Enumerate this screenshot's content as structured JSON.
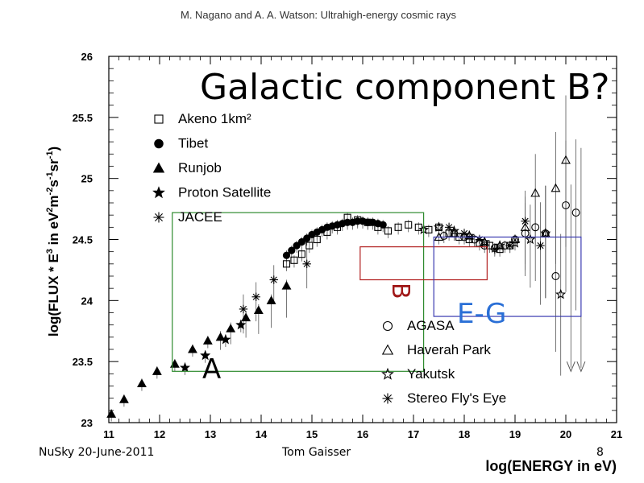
{
  "header": "M. Nagano and A. A. Watson: Ultrahigh-energy cosmic rays",
  "slide_title": "Galactic component B?",
  "footer": {
    "left": "NuSky 20-June-2011",
    "center": "Tom Gaisser",
    "page": "8"
  },
  "colors": {
    "box_A": "#2e8b2e",
    "box_B": "#b22222",
    "box_EG": "#3a3ab0",
    "label_A": "#000000",
    "label_B": "#a01818",
    "label_EG": "#2a6fd6"
  },
  "regions": [
    {
      "label": "A",
      "x_range": [
        12.25,
        17.2
      ],
      "y_range": [
        23.42,
        24.72
      ]
    },
    {
      "label": "B",
      "x_range": [
        15.95,
        18.45
      ],
      "y_range": [
        24.17,
        24.44
      ]
    },
    {
      "label": "E-G",
      "x_range": [
        17.4,
        20.3
      ],
      "y_range": [
        23.87,
        24.52
      ]
    }
  ],
  "chart_data": {
    "type": "scatter",
    "xlabel": "log(ENERGY in eV)",
    "ylabel": "log(FLUX * E^3 in eV^2 m^-2 s^-1 sr^-1)",
    "xlim": [
      11,
      21
    ],
    "ylim": [
      23,
      26
    ],
    "x_ticks": [
      11,
      12,
      13,
      14,
      15,
      16,
      17,
      18,
      19,
      20,
      21
    ],
    "y_ticks": [
      23,
      23.5,
      24,
      24.5,
      25,
      25.5,
      26
    ],
    "legend_placement": "top-left and bottom-right",
    "series": [
      {
        "name": "Akeno 1km²",
        "marker": "open-square",
        "x": [
          14.5,
          14.65,
          14.8,
          14.95,
          15.1,
          15.3,
          15.5,
          15.7,
          15.9,
          16.1,
          16.3,
          16.5,
          16.7,
          16.9,
          17.1,
          17.3,
          17.5,
          17.7,
          17.9,
          18.1,
          18.3,
          18.5,
          18.7,
          18.9
        ],
        "y": [
          24.3,
          24.33,
          24.38,
          24.45,
          24.5,
          24.56,
          24.6,
          24.68,
          24.66,
          24.64,
          24.6,
          24.57,
          24.6,
          24.62,
          24.6,
          24.58,
          24.6,
          24.55,
          24.52,
          24.5,
          24.47,
          24.45,
          24.42,
          24.45
        ]
      },
      {
        "name": "Tibet",
        "marker": "filled-circle",
        "x": [
          14.5,
          14.6,
          14.7,
          14.8,
          14.9,
          15.0,
          15.1,
          15.2,
          15.3,
          15.4,
          15.5,
          15.6,
          15.7,
          15.8,
          15.9,
          16.0,
          16.1,
          16.2,
          16.3,
          16.4
        ],
        "y": [
          24.37,
          24.41,
          24.45,
          24.48,
          24.51,
          24.54,
          24.56,
          24.58,
          24.6,
          24.61,
          24.62,
          24.63,
          24.64,
          24.64,
          24.65,
          24.65,
          24.64,
          24.64,
          24.63,
          24.62
        ]
      },
      {
        "name": "Runjob",
        "marker": "filled-triangle",
        "x": [
          11.05,
          11.3,
          11.65,
          11.95,
          12.3,
          12.65,
          12.95,
          13.2,
          13.4,
          13.7,
          13.95,
          14.2,
          14.5
        ],
        "y": [
          23.07,
          23.19,
          23.32,
          23.42,
          23.48,
          23.6,
          23.67,
          23.7,
          23.77,
          23.86,
          23.92,
          24.0,
          24.12
        ]
      },
      {
        "name": "Proton Satellite",
        "marker": "filled-star",
        "x": [
          12.5,
          12.9,
          13.3,
          13.6
        ],
        "y": [
          23.45,
          23.55,
          23.68,
          23.8
        ]
      },
      {
        "name": "JACEE",
        "marker": "asterisk",
        "x": [
          13.65,
          13.9,
          14.25,
          14.9
        ],
        "y": [
          23.93,
          24.03,
          24.17,
          24.3
        ]
      },
      {
        "name": "AGASA",
        "marker": "open-circle",
        "x": [
          17.6,
          17.8,
          18.0,
          18.2,
          18.4,
          18.6,
          18.8,
          19.0,
          19.2,
          19.4,
          19.6,
          19.8,
          20.0,
          20.2
        ],
        "y": [
          24.53,
          24.55,
          24.52,
          24.5,
          24.45,
          24.43,
          24.45,
          24.5,
          24.55,
          24.6,
          24.55,
          24.2,
          24.78,
          24.72
        ]
      },
      {
        "name": "Haverah Park",
        "marker": "open-triangle",
        "x": [
          17.5,
          17.8,
          18.1,
          18.4,
          18.7,
          19.0,
          19.2,
          19.4,
          19.6,
          19.8,
          20.0
        ],
        "y": [
          24.52,
          24.55,
          24.53,
          24.48,
          24.45,
          24.5,
          24.6,
          24.88,
          24.55,
          24.92,
          25.15
        ]
      },
      {
        "name": "Yakutsk",
        "marker": "open-star",
        "x": [
          17.2,
          17.5,
          17.8,
          18.1,
          18.4,
          18.7,
          19.0,
          19.3,
          19.6,
          19.9
        ],
        "y": [
          24.58,
          24.6,
          24.57,
          24.53,
          24.48,
          24.45,
          24.47,
          24.5,
          24.55,
          24.05
        ]
      },
      {
        "name": "Stereo Fly's Eye",
        "marker": "asterisk",
        "x": [
          17.7,
          18.0,
          18.3,
          18.6,
          18.9,
          19.2,
          19.5
        ],
        "y": [
          24.6,
          24.55,
          24.5,
          24.42,
          24.45,
          24.65,
          24.45
        ]
      }
    ]
  }
}
